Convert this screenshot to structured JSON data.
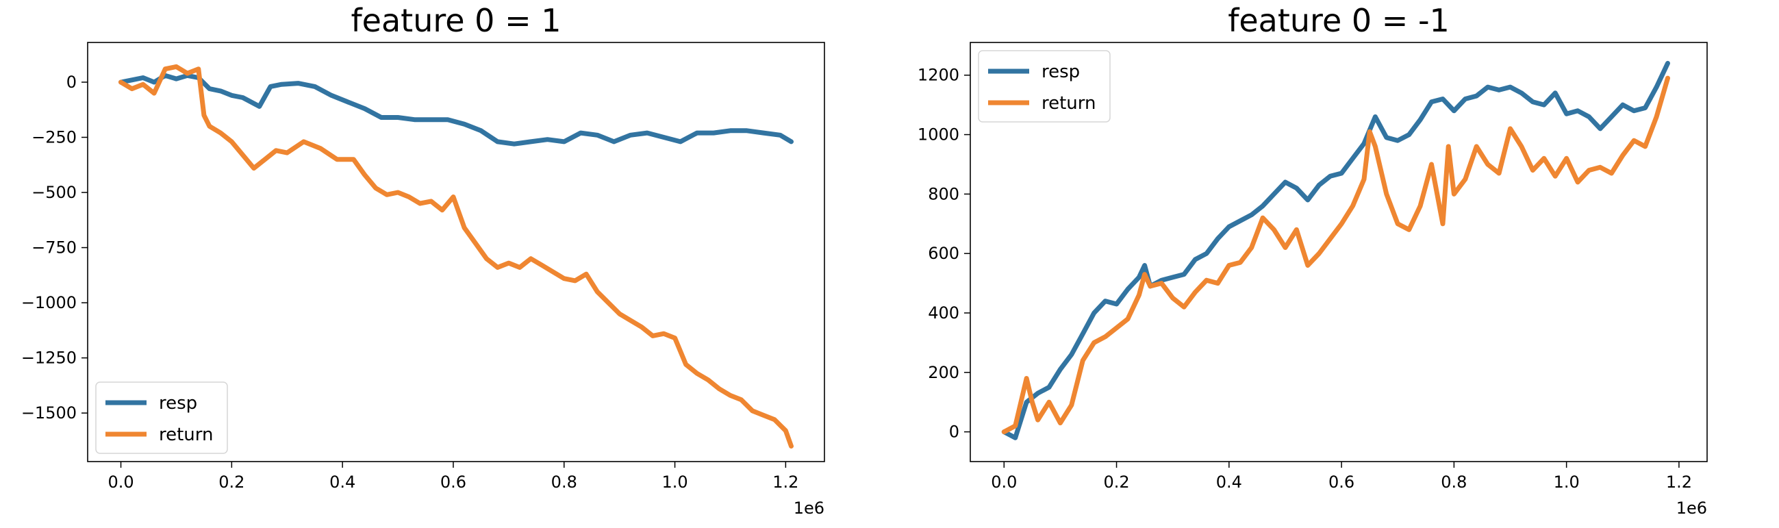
{
  "chart_data": [
    {
      "type": "line",
      "title": "feature 0 = 1",
      "xlim": [
        -60000,
        1270000
      ],
      "ylim": [
        -1720,
        180
      ],
      "xticks": [
        0,
        200000,
        400000,
        600000,
        800000,
        1000000,
        1200000
      ],
      "xtick_labels": [
        "0.0",
        "0.2",
        "0.4",
        "0.6",
        "0.8",
        "1.0",
        "1.2"
      ],
      "x_offset_label": "1e6",
      "yticks": [
        0,
        -250,
        -500,
        -750,
        -1000,
        -1250,
        -1500
      ],
      "ytick_labels": [
        "0",
        "−250",
        "−500",
        "−750",
        "−1000",
        "−1250",
        "−1500"
      ],
      "legend_position": "lower left",
      "grid": false,
      "series": [
        {
          "name": "resp",
          "color": "#3274A1",
          "x": [
            0,
            20000,
            40000,
            60000,
            80000,
            100000,
            120000,
            140000,
            160000,
            180000,
            200000,
            220000,
            250000,
            270000,
            290000,
            320000,
            350000,
            380000,
            410000,
            440000,
            470000,
            500000,
            530000,
            560000,
            590000,
            620000,
            650000,
            680000,
            710000,
            740000,
            770000,
            800000,
            830000,
            860000,
            890000,
            920000,
            950000,
            980000,
            1010000,
            1040000,
            1070000,
            1100000,
            1130000,
            1160000,
            1190000,
            1210000
          ],
          "y": [
            0,
            10,
            20,
            0,
            30,
            15,
            30,
            20,
            -30,
            -40,
            -60,
            -70,
            -110,
            -20,
            -10,
            -5,
            -20,
            -60,
            -90,
            -120,
            -160,
            -160,
            -170,
            -170,
            -170,
            -190,
            -220,
            -270,
            -280,
            -270,
            -260,
            -270,
            -230,
            -240,
            -270,
            -240,
            -230,
            -250,
            -270,
            -230,
            -230,
            -220,
            -220,
            -230,
            -240,
            -270
          ]
        },
        {
          "name": "return",
          "color": "#EF8631",
          "x": [
            0,
            20000,
            40000,
            60000,
            80000,
            100000,
            120000,
            140000,
            150000,
            160000,
            180000,
            200000,
            220000,
            240000,
            260000,
            280000,
            300000,
            330000,
            360000,
            390000,
            420000,
            440000,
            460000,
            480000,
            500000,
            520000,
            540000,
            560000,
            580000,
            600000,
            620000,
            640000,
            660000,
            680000,
            700000,
            720000,
            740000,
            760000,
            780000,
            800000,
            820000,
            840000,
            860000,
            880000,
            900000,
            920000,
            940000,
            960000,
            980000,
            1000000,
            1020000,
            1040000,
            1060000,
            1080000,
            1100000,
            1120000,
            1140000,
            1160000,
            1180000,
            1200000,
            1210000
          ],
          "y": [
            0,
            -30,
            -10,
            -50,
            60,
            70,
            40,
            60,
            -150,
            -200,
            -230,
            -270,
            -330,
            -390,
            -350,
            -310,
            -320,
            -270,
            -300,
            -350,
            -350,
            -420,
            -480,
            -510,
            -500,
            -520,
            -550,
            -540,
            -580,
            -520,
            -660,
            -730,
            -800,
            -840,
            -820,
            -840,
            -800,
            -830,
            -860,
            -890,
            -900,
            -870,
            -950,
            -1000,
            -1050,
            -1080,
            -1110,
            -1150,
            -1140,
            -1160,
            -1280,
            -1320,
            -1350,
            -1390,
            -1420,
            -1440,
            -1490,
            -1510,
            -1530,
            -1580,
            -1650
          ]
        }
      ]
    },
    {
      "type": "line",
      "title": "feature 0 = -1",
      "xlim": [
        -60000,
        1250000
      ],
      "ylim": [
        -100,
        1310
      ],
      "xticks": [
        0,
        200000,
        400000,
        600000,
        800000,
        1000000,
        1200000
      ],
      "xtick_labels": [
        "0.0",
        "0.2",
        "0.4",
        "0.6",
        "0.8",
        "1.0",
        "1.2"
      ],
      "x_offset_label": "1e6",
      "yticks": [
        0,
        200,
        400,
        600,
        800,
        1000,
        1200
      ],
      "ytick_labels": [
        "0",
        "200",
        "400",
        "600",
        "800",
        "1000",
        "1200"
      ],
      "legend_position": "upper left",
      "grid": false,
      "series": [
        {
          "name": "resp",
          "color": "#3274A1",
          "x": [
            0,
            20000,
            40000,
            60000,
            80000,
            100000,
            120000,
            140000,
            160000,
            180000,
            200000,
            220000,
            240000,
            250000,
            260000,
            280000,
            300000,
            320000,
            340000,
            360000,
            380000,
            400000,
            420000,
            440000,
            460000,
            480000,
            500000,
            520000,
            540000,
            560000,
            580000,
            600000,
            620000,
            640000,
            660000,
            680000,
            700000,
            720000,
            740000,
            760000,
            780000,
            800000,
            820000,
            840000,
            860000,
            880000,
            900000,
            920000,
            940000,
            960000,
            980000,
            1000000,
            1020000,
            1040000,
            1060000,
            1080000,
            1100000,
            1120000,
            1140000,
            1160000,
            1180000
          ],
          "y": [
            0,
            -20,
            100,
            130,
            150,
            210,
            260,
            330,
            400,
            440,
            430,
            480,
            520,
            560,
            490,
            510,
            520,
            530,
            580,
            600,
            650,
            690,
            710,
            730,
            760,
            800,
            840,
            820,
            780,
            830,
            860,
            870,
            920,
            970,
            1060,
            990,
            980,
            1000,
            1050,
            1110,
            1120,
            1080,
            1120,
            1130,
            1160,
            1150,
            1160,
            1140,
            1110,
            1100,
            1140,
            1070,
            1080,
            1060,
            1020,
            1060,
            1100,
            1080,
            1090,
            1160,
            1240
          ]
        },
        {
          "name": "return",
          "color": "#EF8631",
          "x": [
            0,
            20000,
            40000,
            50000,
            60000,
            80000,
            100000,
            120000,
            140000,
            160000,
            180000,
            200000,
            220000,
            240000,
            250000,
            260000,
            280000,
            300000,
            320000,
            340000,
            360000,
            380000,
            400000,
            420000,
            440000,
            460000,
            480000,
            500000,
            520000,
            540000,
            560000,
            580000,
            600000,
            620000,
            640000,
            650000,
            660000,
            680000,
            700000,
            720000,
            740000,
            760000,
            780000,
            790000,
            800000,
            820000,
            840000,
            860000,
            880000,
            900000,
            920000,
            940000,
            960000,
            980000,
            1000000,
            1020000,
            1040000,
            1060000,
            1080000,
            1100000,
            1120000,
            1140000,
            1160000,
            1180000
          ],
          "y": [
            0,
            20,
            180,
            100,
            40,
            100,
            30,
            90,
            240,
            300,
            320,
            350,
            380,
            460,
            530,
            490,
            500,
            450,
            420,
            470,
            510,
            500,
            560,
            570,
            620,
            720,
            680,
            620,
            680,
            560,
            600,
            650,
            700,
            760,
            850,
            1010,
            960,
            800,
            700,
            680,
            760,
            900,
            700,
            960,
            800,
            850,
            960,
            900,
            870,
            1020,
            960,
            880,
            920,
            860,
            920,
            840,
            880,
            890,
            870,
            930,
            980,
            960,
            1060,
            1190
          ]
        }
      ]
    }
  ]
}
